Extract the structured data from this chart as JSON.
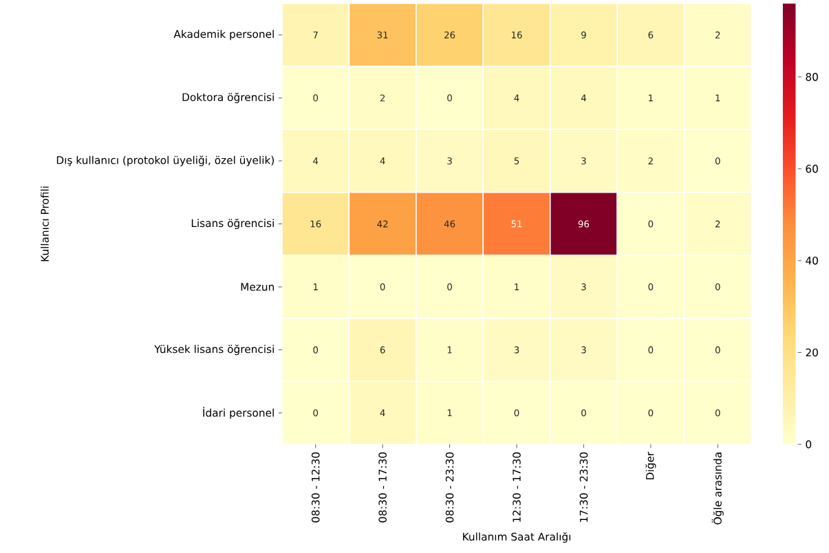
{
  "chart_data": {
    "type": "heatmap",
    "xlabel": "Kullanım Saat Aralığı",
    "ylabel": "Kullanıcı Profili",
    "categories": [
      "08:30 - 12:30",
      "08:30 - 17:30",
      "08:30 - 23:30",
      "12:30 - 17:30",
      "17:30 - 23:30",
      "Diğer",
      "Öğle arasında"
    ],
    "y_categories": [
      "Akademik personel",
      "Doktora öğrencisi",
      "Dış kullanıcı (protokol üyeliği, özel üyelik)",
      "Lisans öğrencisi",
      "Mezun",
      "Yüksek lisans öğrencisi",
      "İdari personel"
    ],
    "cells": [
      [
        7,
        31,
        26,
        16,
        9,
        6,
        2
      ],
      [
        0,
        2,
        0,
        4,
        4,
        1,
        1
      ],
      [
        4,
        4,
        3,
        5,
        3,
        2,
        0
      ],
      [
        16,
        42,
        46,
        51,
        96,
        0,
        2
      ],
      [
        1,
        0,
        0,
        1,
        3,
        0,
        0
      ],
      [
        0,
        6,
        1,
        3,
        3,
        0,
        0
      ],
      [
        0,
        4,
        1,
        0,
        0,
        0,
        0
      ]
    ],
    "clim": [
      0,
      96
    ],
    "cticks": [
      0,
      20,
      40,
      60,
      80
    ],
    "data_labels": true
  }
}
